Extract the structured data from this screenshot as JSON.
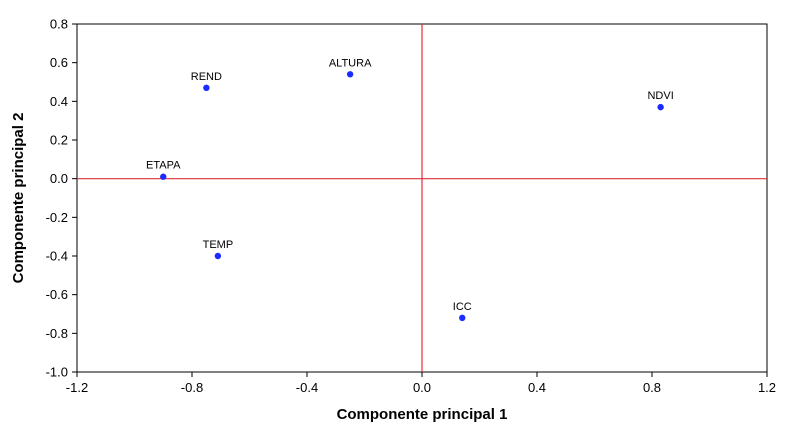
{
  "chart_data": {
    "type": "scatter",
    "title": "",
    "xlabel": "Componente principal 1",
    "ylabel": "Componente principal 2",
    "xlim": [
      -1.2,
      1.2
    ],
    "ylim": [
      -1.0,
      0.8
    ],
    "x_ticks": [
      "-1.2",
      "-0.8",
      "-0.4",
      "0.0",
      "0.4",
      "0.8",
      "1.2"
    ],
    "y_ticks": [
      "0.8",
      "0.6",
      "0.4",
      "0.2",
      "0.0",
      "-0.2",
      "-0.4",
      "-0.6",
      "-0.8",
      "-1.0"
    ],
    "grid": false,
    "reference_lines": {
      "x": 0.0,
      "y": 0.0,
      "color": "#e0303a"
    },
    "marker_color": "#1a2cff",
    "points": [
      {
        "label": "REND",
        "x": -0.75,
        "y": 0.47
      },
      {
        "label": "ALTURA",
        "x": -0.25,
        "y": 0.54
      },
      {
        "label": "NDVI",
        "x": 0.83,
        "y": 0.37
      },
      {
        "label": "ETAPA",
        "x": -0.9,
        "y": 0.01
      },
      {
        "label": "TEMP",
        "x": -0.71,
        "y": -0.4
      },
      {
        "label": "ICC",
        "x": 0.14,
        "y": -0.72
      }
    ]
  }
}
